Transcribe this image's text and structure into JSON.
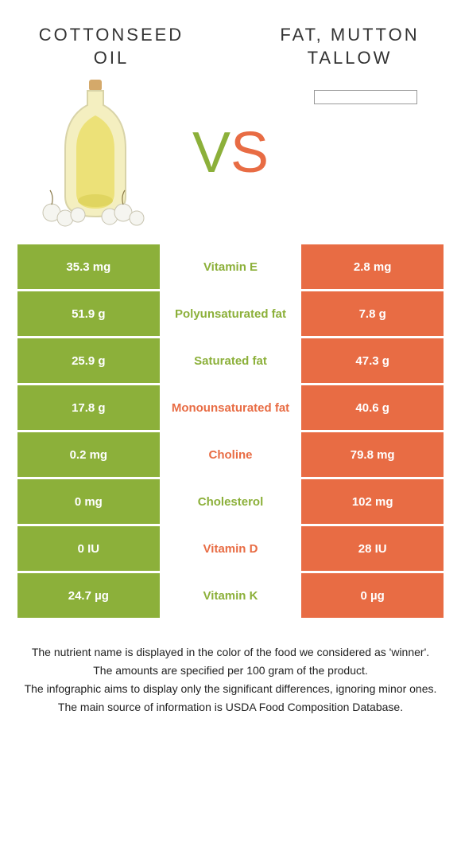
{
  "colors": {
    "left": "#8cb03a",
    "right": "#e86c44",
    "left_text": "#8cb03a",
    "right_text": "#e86c44"
  },
  "titles": {
    "left": "COTTONSEED OIL",
    "right": "FAT, MUTTON TALLOW"
  },
  "vs": {
    "v": "V",
    "s": "S"
  },
  "rows": [
    {
      "left": "35.3 mg",
      "label": "Vitamin E",
      "right": "2.8 mg",
      "winner": "left"
    },
    {
      "left": "51.9 g",
      "label": "Polyunsaturated fat",
      "right": "7.8 g",
      "winner": "left"
    },
    {
      "left": "25.9 g",
      "label": "Saturated fat",
      "right": "47.3 g",
      "winner": "left"
    },
    {
      "left": "17.8 g",
      "label": "Monounsaturated fat",
      "right": "40.6 g",
      "winner": "right"
    },
    {
      "left": "0.2 mg",
      "label": "Choline",
      "right": "79.8 mg",
      "winner": "right"
    },
    {
      "left": "0 mg",
      "label": "Cholesterol",
      "right": "102 mg",
      "winner": "left"
    },
    {
      "left": "0 IU",
      "label": "Vitamin D",
      "right": "28 IU",
      "winner": "right"
    },
    {
      "left": "24.7 µg",
      "label": "Vitamin K",
      "right": "0 µg",
      "winner": "left"
    }
  ],
  "footer": [
    "The nutrient name is displayed in the color of the food we considered as 'winner'.",
    "The amounts are specified per 100 gram of the product.",
    "The infographic aims to display only the significant differences, ignoring minor ones.",
    "The main source of information is USDA Food Composition Database."
  ]
}
